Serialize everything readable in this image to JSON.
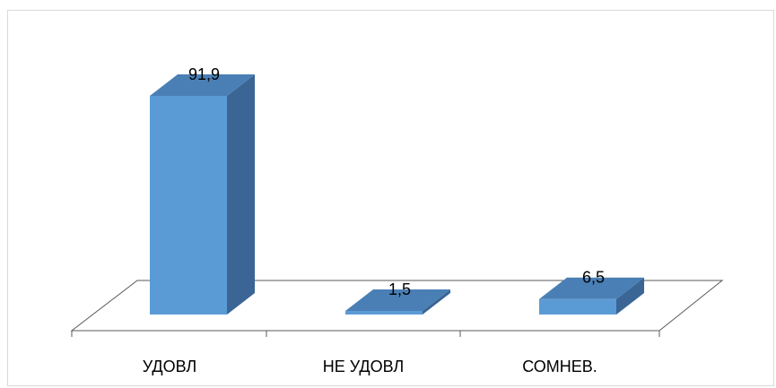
{
  "chart_data": {
    "type": "bar",
    "title": "",
    "xlabel": "",
    "ylabel": "",
    "categories": [
      "УДОВЛ",
      "НЕ УДОВЛ",
      "СОМНЕВ."
    ],
    "values": [
      91.9,
      1.5,
      6.5
    ],
    "value_labels": [
      "91,9",
      "1,5",
      "6,5"
    ],
    "ylim": [
      0,
      100
    ],
    "grid": false,
    "legend": "none",
    "three_d": true,
    "colors": {
      "bar_front": "#5b9bd5",
      "bar_top": "#4a7fb5",
      "bar_side": "#3a6594",
      "axis": "#595959",
      "frame": "#d9d9d9"
    }
  }
}
